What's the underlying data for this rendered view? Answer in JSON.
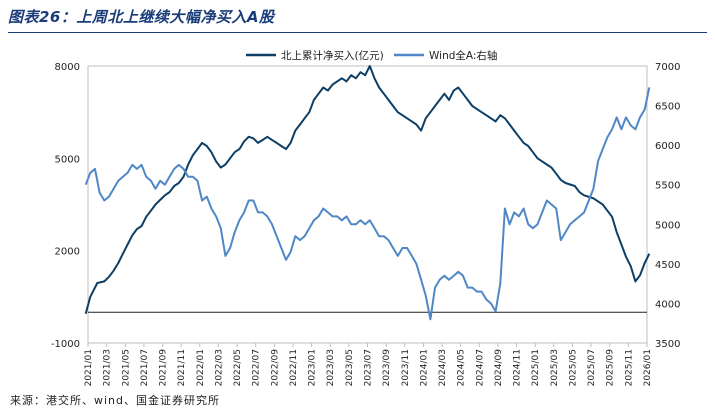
{
  "title": "图表26：上周北上继续大幅净买入A股",
  "source": "来源：港交所、wind、国金证券研究所",
  "chart_data": {
    "type": "line",
    "legend_placement": "top-center",
    "grid": false,
    "x_ticks": [
      "2021/01",
      "2021/03",
      "2021/05",
      "2021/07",
      "2021/09",
      "2021/11",
      "2022/01",
      "2022/03",
      "2022/05",
      "2022/07",
      "2022/09",
      "2022/11",
      "2023/01",
      "2023/03",
      "2023/05",
      "2023/07",
      "2023/09",
      "2023/11",
      "2024/01",
      "2024/03",
      "2024/05",
      "2024/07",
      "2024/09",
      "2024/11",
      "2025/01",
      "2025/03",
      "2025/05",
      "2025/07",
      "2025/09",
      "2025/11",
      "2026/01"
    ],
    "y_left": {
      "lim": [
        -1000,
        8000
      ],
      "ticks": [
        -1000,
        2000,
        5000,
        8000
      ]
    },
    "y_right": {
      "lim": [
        3500,
        7000
      ],
      "ticks": [
        3500,
        4000,
        4500,
        5000,
        5500,
        6000,
        6500,
        7000
      ]
    },
    "series": [
      {
        "name": "北上累计净买入(亿元)",
        "axis": "left",
        "color": "#0d3f66",
        "points": [
          [
            "2021/01",
            -50
          ],
          [
            "2021/01",
            500
          ],
          [
            "2021/02",
            950
          ],
          [
            "2021/03",
            1000
          ],
          [
            "2021/03",
            1150
          ],
          [
            "2021/04",
            1350
          ],
          [
            "2021/04",
            1600
          ],
          [
            "2021/05",
            1900
          ],
          [
            "2021/05",
            2200
          ],
          [
            "2021/06",
            2500
          ],
          [
            "2021/06",
            2700
          ],
          [
            "2021/07",
            2800
          ],
          [
            "2021/07",
            3100
          ],
          [
            "2021/08",
            3300
          ],
          [
            "2021/08",
            3500
          ],
          [
            "2021/09",
            3650
          ],
          [
            "2021/09",
            3800
          ],
          [
            "2021/10",
            3900
          ],
          [
            "2021/10",
            4100
          ],
          [
            "2021/11",
            4200
          ],
          [
            "2021/11",
            4400
          ],
          [
            "2021/12",
            4800
          ],
          [
            "2021/12",
            5100
          ],
          [
            "2022/01",
            5300
          ],
          [
            "2022/01",
            5500
          ],
          [
            "2022/02",
            5400
          ],
          [
            "2022/02",
            5200
          ],
          [
            "2022/03",
            4900
          ],
          [
            "2022/03",
            4700
          ],
          [
            "2022/04",
            4800
          ],
          [
            "2022/04",
            5000
          ],
          [
            "2022/05",
            5200
          ],
          [
            "2022/05",
            5300
          ],
          [
            "2022/06",
            5550
          ],
          [
            "2022/06",
            5700
          ],
          [
            "2022/07",
            5650
          ],
          [
            "2022/07",
            5500
          ],
          [
            "2022/08",
            5600
          ],
          [
            "2022/08",
            5700
          ],
          [
            "2022/09",
            5600
          ],
          [
            "2022/09",
            5500
          ],
          [
            "2022/10",
            5400
          ],
          [
            "2022/10",
            5300
          ],
          [
            "2022/11",
            5500
          ],
          [
            "2022/11",
            5900
          ],
          [
            "2022/12",
            6100
          ],
          [
            "2022/12",
            6300
          ],
          [
            "2023/01",
            6500
          ],
          [
            "2023/01",
            6900
          ],
          [
            "2023/02",
            7100
          ],
          [
            "2023/02",
            7300
          ],
          [
            "2023/03",
            7200
          ],
          [
            "2023/03",
            7400
          ],
          [
            "2023/04",
            7500
          ],
          [
            "2023/04",
            7600
          ],
          [
            "2023/05",
            7500
          ],
          [
            "2023/05",
            7700
          ],
          [
            "2023/06",
            7600
          ],
          [
            "2023/06",
            7800
          ],
          [
            "2023/07",
            7700
          ],
          [
            "2023/07",
            8000
          ],
          [
            "2023/08",
            7600
          ],
          [
            "2023/08",
            7300
          ],
          [
            "2023/09",
            7100
          ],
          [
            "2023/09",
            6900
          ],
          [
            "2023/10",
            6700
          ],
          [
            "2023/10",
            6500
          ],
          [
            "2023/11",
            6400
          ],
          [
            "2023/11",
            6300
          ],
          [
            "2023/12",
            6200
          ],
          [
            "2023/12",
            6100
          ],
          [
            "2024/01",
            5900
          ],
          [
            "2024/01",
            6300
          ],
          [
            "2024/02",
            6500
          ],
          [
            "2024/02",
            6700
          ],
          [
            "2024/03",
            6900
          ],
          [
            "2024/03",
            7100
          ],
          [
            "2024/04",
            6900
          ],
          [
            "2024/04",
            7200
          ],
          [
            "2024/05",
            7300
          ],
          [
            "2024/05",
            7100
          ],
          [
            "2024/06",
            6900
          ],
          [
            "2024/06",
            6700
          ],
          [
            "2024/07",
            6600
          ],
          [
            "2024/07",
            6500
          ],
          [
            "2024/08",
            6400
          ],
          [
            "2024/08",
            6300
          ],
          [
            "2024/09",
            6200
          ],
          [
            "2024/09",
            6400
          ],
          [
            "2024/10",
            6300
          ],
          [
            "2024/10",
            6100
          ],
          [
            "2024/11",
            5900
          ],
          [
            "2024/11",
            5700
          ],
          [
            "2024/12",
            5500
          ],
          [
            "2024/12",
            5400
          ],
          [
            "2025/01",
            5200
          ],
          [
            "2025/01",
            5000
          ],
          [
            "2025/02",
            4900
          ],
          [
            "2025/02",
            4800
          ],
          [
            "2025/03",
            4700
          ],
          [
            "2025/03",
            4500
          ],
          [
            "2025/04",
            4300
          ],
          [
            "2025/04",
            4200
          ],
          [
            "2025/05",
            4150
          ],
          [
            "2025/05",
            4100
          ],
          [
            "2025/06",
            3900
          ],
          [
            "2025/06",
            3800
          ],
          [
            "2025/07",
            3750
          ],
          [
            "2025/07",
            3700
          ],
          [
            "2025/08",
            3600
          ],
          [
            "2025/08",
            3500
          ],
          [
            "2025/09",
            3300
          ],
          [
            "2025/09",
            3100
          ],
          [
            "2025/10",
            2600
          ],
          [
            "2025/10",
            2200
          ],
          [
            "2025/11",
            1800
          ],
          [
            "2025/11",
            1500
          ],
          [
            "2025/12",
            1000
          ],
          [
            "2025/12",
            1200
          ],
          [
            "2026/01",
            1600
          ],
          [
            "2026/01",
            1900
          ]
        ]
      },
      {
        "name": "Wind全A:右轴",
        "axis": "right",
        "color": "#4f87c7",
        "points": [
          [
            "2021/01",
            5500
          ],
          [
            "2021/01",
            5650
          ],
          [
            "2021/02",
            5700
          ],
          [
            "2021/02",
            5400
          ],
          [
            "2021/03",
            5300
          ],
          [
            "2021/03",
            5350
          ],
          [
            "2021/04",
            5450
          ],
          [
            "2021/04",
            5550
          ],
          [
            "2021/05",
            5600
          ],
          [
            "2021/05",
            5650
          ],
          [
            "2021/06",
            5750
          ],
          [
            "2021/06",
            5700
          ],
          [
            "2021/07",
            5750
          ],
          [
            "2021/07",
            5600
          ],
          [
            "2021/08",
            5550
          ],
          [
            "2021/08",
            5450
          ],
          [
            "2021/09",
            5550
          ],
          [
            "2021/09",
            5500
          ],
          [
            "2021/10",
            5600
          ],
          [
            "2021/10",
            5700
          ],
          [
            "2021/11",
            5750
          ],
          [
            "2021/11",
            5700
          ],
          [
            "2021/12",
            5600
          ],
          [
            "2021/12",
            5600
          ],
          [
            "2022/01",
            5550
          ],
          [
            "2022/01",
            5300
          ],
          [
            "2022/02",
            5350
          ],
          [
            "2022/02",
            5200
          ],
          [
            "2022/03",
            5100
          ],
          [
            "2022/03",
            4950
          ],
          [
            "2022/04",
            4600
          ],
          [
            "2022/04",
            4700
          ],
          [
            "2022/05",
            4900
          ],
          [
            "2022/05",
            5050
          ],
          [
            "2022/06",
            5150
          ],
          [
            "2022/06",
            5300
          ],
          [
            "2022/07",
            5300
          ],
          [
            "2022/07",
            5150
          ],
          [
            "2022/08",
            5150
          ],
          [
            "2022/08",
            5100
          ],
          [
            "2022/09",
            5000
          ],
          [
            "2022/09",
            4850
          ],
          [
            "2022/10",
            4700
          ],
          [
            "2022/10",
            4550
          ],
          [
            "2022/11",
            4650
          ],
          [
            "2022/11",
            4850
          ],
          [
            "2022/12",
            4800
          ],
          [
            "2022/12",
            4850
          ],
          [
            "2023/01",
            4950
          ],
          [
            "2023/01",
            5050
          ],
          [
            "2023/02",
            5100
          ],
          [
            "2023/02",
            5200
          ],
          [
            "2023/03",
            5150
          ],
          [
            "2023/03",
            5100
          ],
          [
            "2023/04",
            5100
          ],
          [
            "2023/04",
            5050
          ],
          [
            "2023/05",
            5100
          ],
          [
            "2023/05",
            5000
          ],
          [
            "2023/06",
            5000
          ],
          [
            "2023/06",
            5050
          ],
          [
            "2023/07",
            5000
          ],
          [
            "2023/07",
            5050
          ],
          [
            "2023/08",
            4950
          ],
          [
            "2023/08",
            4850
          ],
          [
            "2023/09",
            4850
          ],
          [
            "2023/09",
            4800
          ],
          [
            "2023/10",
            4700
          ],
          [
            "2023/10",
            4600
          ],
          [
            "2023/11",
            4700
          ],
          [
            "2023/11",
            4700
          ],
          [
            "2023/12",
            4600
          ],
          [
            "2023/12",
            4500
          ],
          [
            "2024/01",
            4300
          ],
          [
            "2024/01",
            4100
          ],
          [
            "2024/02",
            3800
          ],
          [
            "2024/02",
            4200
          ],
          [
            "2024/03",
            4300
          ],
          [
            "2024/03",
            4350
          ],
          [
            "2024/04",
            4300
          ],
          [
            "2024/04",
            4350
          ],
          [
            "2024/05",
            4400
          ],
          [
            "2024/05",
            4350
          ],
          [
            "2024/06",
            4200
          ],
          [
            "2024/06",
            4200
          ],
          [
            "2024/07",
            4150
          ],
          [
            "2024/07",
            4150
          ],
          [
            "2024/08",
            4050
          ],
          [
            "2024/08",
            4000
          ],
          [
            "2024/09",
            3900
          ],
          [
            "2024/09",
            4250
          ],
          [
            "2024/10",
            5200
          ],
          [
            "2024/10",
            5000
          ],
          [
            "2024/11",
            5150
          ],
          [
            "2024/11",
            5100
          ],
          [
            "2024/12",
            5200
          ],
          [
            "2024/12",
            5000
          ],
          [
            "2025/01",
            4950
          ],
          [
            "2025/01",
            5000
          ],
          [
            "2025/02",
            5150
          ],
          [
            "2025/02",
            5300
          ],
          [
            "2025/03",
            5250
          ],
          [
            "2025/03",
            5200
          ],
          [
            "2025/04",
            4800
          ],
          [
            "2025/04",
            4900
          ],
          [
            "2025/05",
            5000
          ],
          [
            "2025/05",
            5050
          ],
          [
            "2025/06",
            5100
          ],
          [
            "2025/06",
            5150
          ],
          [
            "2025/07",
            5300
          ],
          [
            "2025/07",
            5450
          ],
          [
            "2025/08",
            5800
          ],
          [
            "2025/08",
            5950
          ],
          [
            "2025/09",
            6100
          ],
          [
            "2025/09",
            6200
          ],
          [
            "2025/10",
            6350
          ],
          [
            "2025/10",
            6200
          ],
          [
            "2025/11",
            6350
          ],
          [
            "2025/11",
            6250
          ],
          [
            "2025/12",
            6200
          ],
          [
            "2025/12",
            6350
          ],
          [
            "2026/01",
            6450
          ],
          [
            "2026/01",
            6730
          ]
        ]
      }
    ]
  }
}
